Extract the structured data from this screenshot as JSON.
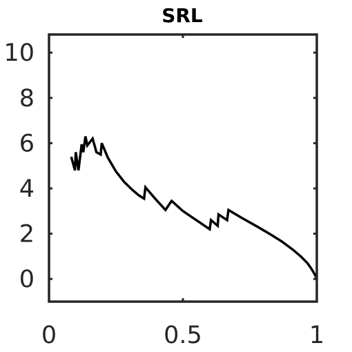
{
  "chart_data": {
    "type": "line",
    "title": "SRL",
    "xlabel": "",
    "ylabel": "",
    "xlim": [
      0,
      1
    ],
    "ylim": [
      -1,
      10.8
    ],
    "xticks": [
      0,
      0.5,
      1
    ],
    "xtick_labels": [
      "0",
      "0.5",
      "1"
    ],
    "yticks": [
      0,
      2,
      4,
      6,
      8,
      10
    ],
    "ytick_labels": [
      "0",
      "2",
      "4",
      "6",
      "8",
      "10"
    ],
    "grid": false,
    "box": true,
    "series": [
      {
        "color": "#000000",
        "x": [
          0.083,
          0.097,
          0.1,
          0.11,
          0.122,
          0.128,
          0.136,
          0.143,
          0.163,
          0.17,
          0.177,
          0.193,
          0.197,
          0.22,
          0.25,
          0.28,
          0.31,
          0.335,
          0.355,
          0.36,
          0.4,
          0.435,
          0.452,
          0.458,
          0.5,
          0.55,
          0.6,
          0.605,
          0.63,
          0.633,
          0.665,
          0.67,
          0.72,
          0.78,
          0.83,
          0.87,
          0.91,
          0.94,
          0.965,
          0.98,
          0.99,
          0.997,
          1.0
        ],
        "y": [
          5.4,
          4.8,
          5.6,
          4.8,
          5.95,
          5.6,
          6.3,
          5.9,
          6.2,
          5.9,
          5.6,
          5.5,
          6.0,
          5.35,
          4.75,
          4.3,
          3.95,
          3.7,
          3.55,
          4.05,
          3.5,
          3.05,
          3.35,
          3.45,
          3.0,
          2.6,
          2.2,
          2.6,
          2.35,
          2.85,
          2.6,
          3.05,
          2.7,
          2.3,
          1.95,
          1.65,
          1.3,
          1.0,
          0.7,
          0.45,
          0.25,
          0.1,
          0.0
        ]
      }
    ]
  }
}
